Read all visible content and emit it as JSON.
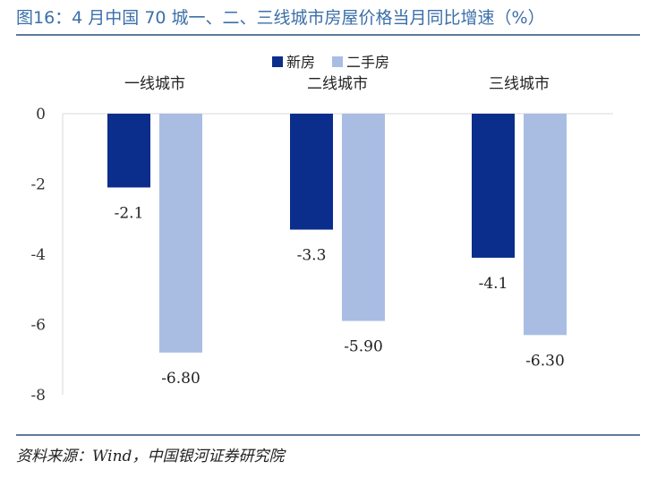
{
  "figure": {
    "title": "图16：4 月中国 70 城一、二、三线城市房屋价格当月同比增速（%）",
    "source": "资料来源：Wind，中国银河证券研究院"
  },
  "chart_data": {
    "type": "bar",
    "categories": [
      "一线城市",
      "二线城市",
      "三线城市"
    ],
    "series": [
      {
        "name": "新房",
        "values": [
          -2.1,
          -3.3,
          -4.1
        ],
        "labels": [
          "-2.1",
          "-3.3",
          "-4.1"
        ],
        "color": "#0b2d8c"
      },
      {
        "name": "二手房",
        "values": [
          -6.8,
          -5.9,
          -6.3
        ],
        "labels": [
          "-6.80",
          "-5.90",
          "-6.30"
        ],
        "color": "#a9bde3"
      }
    ],
    "ylim": [
      -8,
      0
    ],
    "yticks": [
      "0",
      "-2",
      "-4",
      "-6",
      "-8"
    ],
    "category_labels_position": "top",
    "legend": "top-center",
    "grid": false,
    "xlabel": "",
    "ylabel": ""
  }
}
